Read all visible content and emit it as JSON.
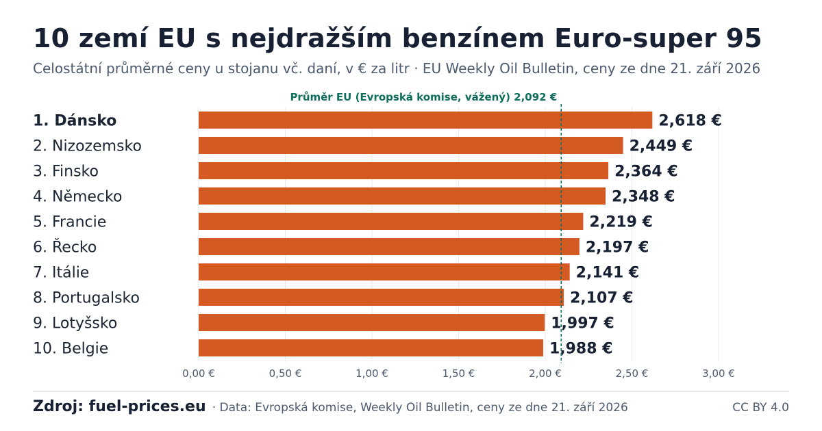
{
  "title": "10 zemí EU s nejdražším benzínem Euro-super 95",
  "subtitle": "Celostátní průměrné ceny u stojanu vč. daní, v € za litr · EU Weekly Oil Bulletin, ceny ze dne 21. září 2026",
  "footer": {
    "source_label": "Zdroj: fuel-prices.eu",
    "source_note": "· Data: Evropská komise, Weekly Oil Bulletin, ceny ze dne 21. září 2026",
    "license": "CC BY 4.0"
  },
  "chart_data": {
    "type": "bar",
    "orientation": "horizontal",
    "categories": [
      "1. Dánsko",
      "2. Nizozemsko",
      "3. Finsko",
      "4. Německo",
      "5. Francie",
      "6. Řecko",
      "7. Itálie",
      "8. Portugalsko",
      "9. Lotyšsko",
      "10. Belgie"
    ],
    "values": [
      2.618,
      2.449,
      2.364,
      2.348,
      2.219,
      2.197,
      2.141,
      2.107,
      1.997,
      1.988
    ],
    "value_labels": [
      "2,618 €",
      "2,449 €",
      "2,364 €",
      "2,348 €",
      "2,219 €",
      "2,197 €",
      "2,141 €",
      "2,107 €",
      "1,997 €",
      "1,988 €"
    ],
    "highlight_index": 0,
    "bar_color": "#d45a24",
    "xlim": [
      0,
      3
    ],
    "x_ticks": [
      0,
      0.5,
      1,
      1.5,
      2,
      2.5,
      3
    ],
    "x_tick_labels": [
      "0,00 €",
      "0,50 €",
      "1,00 €",
      "1,50 €",
      "2,00 €",
      "2,50 €",
      "3,00 €"
    ],
    "grid": true,
    "reference_line": {
      "value": 2.092,
      "label": "Průměr EU (Evropská komise, vážený) 2,092 €",
      "color": "#0e6e5c",
      "style": "dashed"
    }
  }
}
